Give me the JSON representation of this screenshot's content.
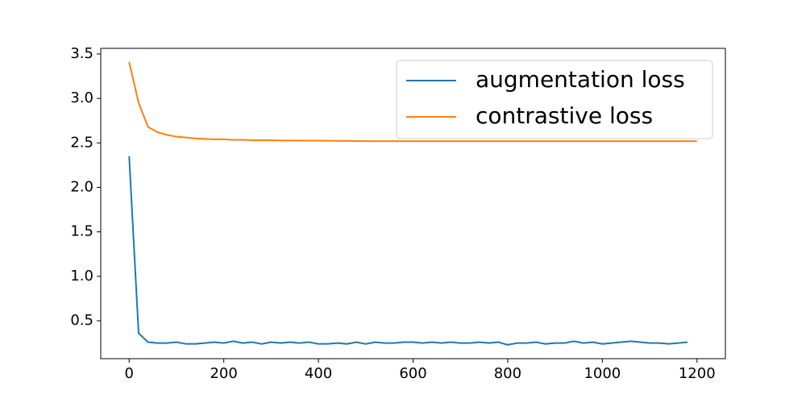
{
  "chart_data": {
    "type": "line",
    "series": [
      {
        "name": "augmentation loss",
        "color": "#1f77b4",
        "x": [
          0,
          20,
          40,
          60,
          80,
          100,
          120,
          140,
          160,
          180,
          200,
          220,
          240,
          260,
          280,
          300,
          320,
          340,
          360,
          380,
          400,
          420,
          440,
          460,
          480,
          500,
          520,
          540,
          560,
          580,
          600,
          620,
          640,
          660,
          680,
          700,
          720,
          740,
          760,
          780,
          800,
          820,
          840,
          860,
          880,
          900,
          920,
          940,
          960,
          980,
          1000,
          1020,
          1040,
          1060,
          1080,
          1100,
          1120,
          1140,
          1160,
          1180
        ],
        "values": [
          2.35,
          0.36,
          0.26,
          0.25,
          0.25,
          0.26,
          0.24,
          0.24,
          0.25,
          0.26,
          0.25,
          0.27,
          0.25,
          0.26,
          0.24,
          0.26,
          0.25,
          0.26,
          0.25,
          0.26,
          0.24,
          0.24,
          0.25,
          0.24,
          0.26,
          0.24,
          0.26,
          0.25,
          0.25,
          0.26,
          0.26,
          0.25,
          0.26,
          0.25,
          0.26,
          0.25,
          0.25,
          0.26,
          0.25,
          0.26,
          0.23,
          0.25,
          0.25,
          0.26,
          0.24,
          0.25,
          0.25,
          0.27,
          0.25,
          0.26,
          0.24,
          0.25,
          0.26,
          0.27,
          0.26,
          0.25,
          0.25,
          0.24,
          0.25,
          0.26
        ]
      },
      {
        "name": "contrastive loss",
        "color": "#ff7f0e",
        "x": [
          0,
          20,
          40,
          60,
          80,
          100,
          120,
          140,
          160,
          180,
          200,
          220,
          240,
          260,
          280,
          300,
          320,
          340,
          360,
          380,
          400,
          420,
          440,
          460,
          480,
          500,
          520,
          540,
          560,
          580,
          600,
          620,
          640,
          660,
          680,
          700,
          720,
          740,
          760,
          780,
          800,
          820,
          840,
          860,
          880,
          900,
          920,
          940,
          960,
          980,
          1000,
          1020,
          1040,
          1060,
          1080,
          1100,
          1120,
          1140,
          1160,
          1180,
          1200
        ],
        "values": [
          3.41,
          2.95,
          2.68,
          2.62,
          2.59,
          2.57,
          2.56,
          2.55,
          2.545,
          2.54,
          2.54,
          2.535,
          2.535,
          2.53,
          2.53,
          2.53,
          2.528,
          2.527,
          2.526,
          2.525,
          2.525,
          2.524,
          2.523,
          2.522,
          2.521,
          2.52,
          2.52,
          2.52,
          2.52,
          2.52,
          2.52,
          2.52,
          2.52,
          2.52,
          2.52,
          2.52,
          2.52,
          2.52,
          2.52,
          2.52,
          2.52,
          2.52,
          2.52,
          2.52,
          2.52,
          2.52,
          2.52,
          2.52,
          2.52,
          2.52,
          2.52,
          2.52,
          2.52,
          2.52,
          2.52,
          2.52,
          2.52,
          2.52,
          2.52,
          2.52,
          2.52
        ]
      }
    ],
    "xlim": [
      -60,
      1260
    ],
    "xticks": [
      0,
      200,
      400,
      600,
      800,
      1000,
      1200
    ],
    "ylim": [
      0.074,
      3.563
    ],
    "yticks": [
      {
        "value": 0.5,
        "label": "0.5"
      },
      {
        "value": 1.0,
        "label": "1.0"
      },
      {
        "value": 1.5,
        "label": "1.5"
      },
      {
        "value": 2.0,
        "label": "2.0"
      },
      {
        "value": 2.5,
        "label": "2.5"
      },
      {
        "value": 3.0,
        "label": "3.0"
      },
      {
        "value": 3.5,
        "label": "3.5"
      }
    ],
    "legend": "upper right"
  }
}
